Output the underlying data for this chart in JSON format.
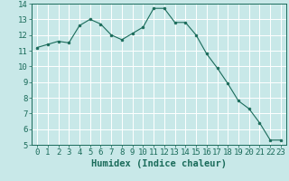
{
  "x": [
    0,
    1,
    2,
    3,
    4,
    5,
    6,
    7,
    8,
    9,
    10,
    11,
    12,
    13,
    14,
    15,
    16,
    17,
    18,
    19,
    20,
    21,
    22,
    23
  ],
  "y": [
    11.2,
    11.4,
    11.6,
    11.5,
    12.6,
    13.0,
    12.7,
    12.0,
    11.7,
    12.1,
    12.5,
    13.7,
    13.7,
    12.8,
    12.8,
    12.0,
    10.8,
    9.9,
    8.9,
    7.8,
    7.3,
    6.4,
    5.3,
    5.3
  ],
  "line_color": "#1a6b5a",
  "marker": "o",
  "marker_size": 2,
  "bg_color": "#c8e8e8",
  "grid_color": "#ffffff",
  "axis_color": "#1a6b5a",
  "xlabel": "Humidex (Indice chaleur)",
  "ylim": [
    5,
    14
  ],
  "xlim": [
    -0.5,
    23.5
  ],
  "yticks": [
    5,
    6,
    7,
    8,
    9,
    10,
    11,
    12,
    13,
    14
  ],
  "xticks": [
    0,
    1,
    2,
    3,
    4,
    5,
    6,
    7,
    8,
    9,
    10,
    11,
    12,
    13,
    14,
    15,
    16,
    17,
    18,
    19,
    20,
    21,
    22,
    23
  ],
  "tick_fontsize": 6.5,
  "xlabel_fontsize": 7.5
}
